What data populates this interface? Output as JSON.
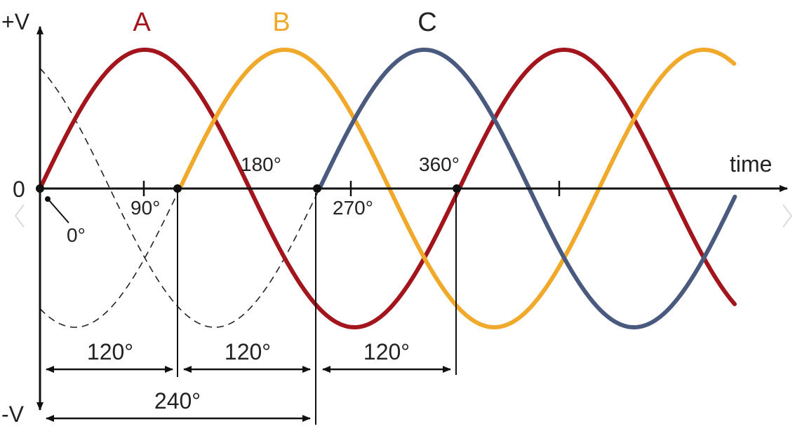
{
  "colors": {
    "phase_a": "#a3151c",
    "phase_b": "#f0a92a",
    "phase_c": "#4a5a7e",
    "axis": "#111111",
    "dashed": "#222222"
  },
  "phases": [
    {
      "label": "A",
      "start_deg": 0
    },
    {
      "label": "B",
      "start_deg": 120
    },
    {
      "label": "C",
      "start_deg": 240
    }
  ],
  "axis": {
    "y_top_label": "+V",
    "y_bottom_label": "-V",
    "origin_label": "0",
    "x_label": "time",
    "origin_angle": "0°"
  },
  "angle_ticks": [
    {
      "deg": 90,
      "label": "90°"
    },
    {
      "deg": 180,
      "label": "180°"
    },
    {
      "deg": 270,
      "label": "270°"
    },
    {
      "deg": 360,
      "label": "360°"
    }
  ],
  "spans": [
    {
      "from_deg": 0,
      "to_deg": 120,
      "label": "120°"
    },
    {
      "from_deg": 120,
      "to_deg": 240,
      "label": "120°"
    },
    {
      "from_deg": 240,
      "to_deg": 360,
      "label": "120°"
    },
    {
      "from_deg": 0,
      "to_deg": 240,
      "label": "240°"
    }
  ]
}
